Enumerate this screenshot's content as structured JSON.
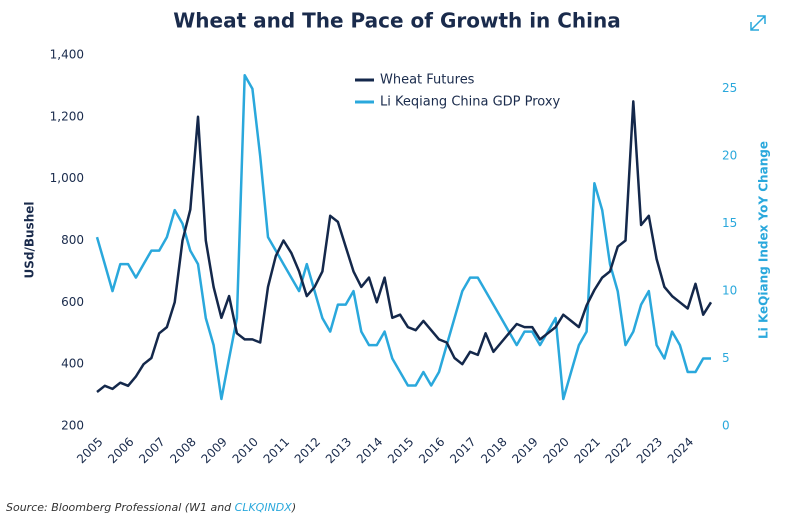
{
  "chart_data": {
    "type": "line",
    "title": "Wheat and The Pace of Growth in China",
    "ylabel": "USd/Bushel",
    "y2label": "Li KeQiang Index YoY Change",
    "x": [
      2005,
      2005.25,
      2005.5,
      2005.75,
      2006,
      2006.25,
      2006.5,
      2006.75,
      2007,
      2007.25,
      2007.5,
      2007.75,
      2008,
      2008.25,
      2008.5,
      2008.75,
      2009,
      2009.25,
      2009.5,
      2009.75,
      2010,
      2010.25,
      2010.5,
      2010.75,
      2011,
      2011.25,
      2011.5,
      2011.75,
      2012,
      2012.25,
      2012.5,
      2012.75,
      2013,
      2013.25,
      2013.5,
      2013.75,
      2014,
      2014.25,
      2014.5,
      2014.75,
      2015,
      2015.25,
      2015.5,
      2015.75,
      2016,
      2016.25,
      2016.5,
      2016.75,
      2017,
      2017.25,
      2017.5,
      2017.75,
      2018,
      2018.25,
      2018.5,
      2018.75,
      2019,
      2019.25,
      2019.5,
      2019.75,
      2020,
      2020.25,
      2020.5,
      2020.75,
      2021,
      2021.25,
      2021.5,
      2021.75,
      2022,
      2022.25,
      2022.5,
      2022.75,
      2023,
      2023.25,
      2023.5,
      2023.75,
      2024,
      2024.25,
      2024.5,
      2024.75
    ],
    "series": [
      {
        "name": "Wheat Futures",
        "color": "#14284b",
        "values": [
          310,
          330,
          320,
          340,
          330,
          360,
          400,
          420,
          500,
          520,
          600,
          800,
          900,
          1200,
          800,
          650,
          550,
          620,
          500,
          480,
          480,
          470,
          650,
          750,
          800,
          760,
          700,
          620,
          650,
          700,
          880,
          860,
          780,
          700,
          650,
          680,
          600,
          680,
          550,
          560,
          520,
          510,
          540,
          510,
          480,
          470,
          420,
          400,
          440,
          430,
          500,
          440,
          470,
          500,
          530,
          520,
          520,
          480,
          500,
          520,
          560,
          540,
          520,
          590,
          640,
          680,
          700,
          780,
          800,
          1250,
          850,
          880,
          740,
          650,
          620,
          600,
          580,
          660,
          560,
          600
        ]
      },
      {
        "name": "Li Keqiang China GDP Proxy",
        "color": "#2aa8dc",
        "axis": "y2",
        "values": [
          14,
          12,
          10,
          12,
          12,
          11,
          12,
          13,
          13,
          14,
          16,
          15,
          13,
          12,
          8,
          6,
          2,
          5,
          8,
          26,
          25,
          20,
          14,
          13,
          12,
          11,
          10,
          12,
          10,
          8,
          7,
          9,
          9,
          10,
          7,
          6,
          6,
          7,
          5,
          4,
          3,
          3,
          4,
          3,
          4,
          6,
          8,
          10,
          11,
          11,
          10,
          9,
          8,
          7,
          6,
          7,
          7,
          6,
          7,
          8,
          2,
          4,
          6,
          7,
          18,
          16,
          12,
          10,
          6,
          7,
          9,
          10,
          6,
          5,
          7,
          6,
          4,
          4,
          5,
          5
        ]
      }
    ],
    "xlim": [
      2005,
      2024.75
    ],
    "xticks": [
      2005,
      2006,
      2007,
      2008,
      2009,
      2010,
      2011,
      2012,
      2013,
      2014,
      2015,
      2016,
      2017,
      2018,
      2019,
      2020,
      2021,
      2022,
      2023,
      2024
    ],
    "ylim": [
      200,
      1400
    ],
    "yticks": [
      200,
      400,
      600,
      800,
      {
        "value": 1000,
        "label": "1,000"
      },
      {
        "value": 1200,
        "label": "1,200"
      },
      {
        "value": 1400,
        "label": "1,400"
      }
    ],
    "y2lim": [
      0,
      27.5
    ],
    "y2ticks": [
      0,
      5,
      10,
      15,
      20,
      25
    ],
    "legend": "top-left",
    "source": {
      "text": "Source: Bloomberg Professional (W1 and",
      "link": "CLKQINDX",
      "suffix": ")"
    }
  }
}
